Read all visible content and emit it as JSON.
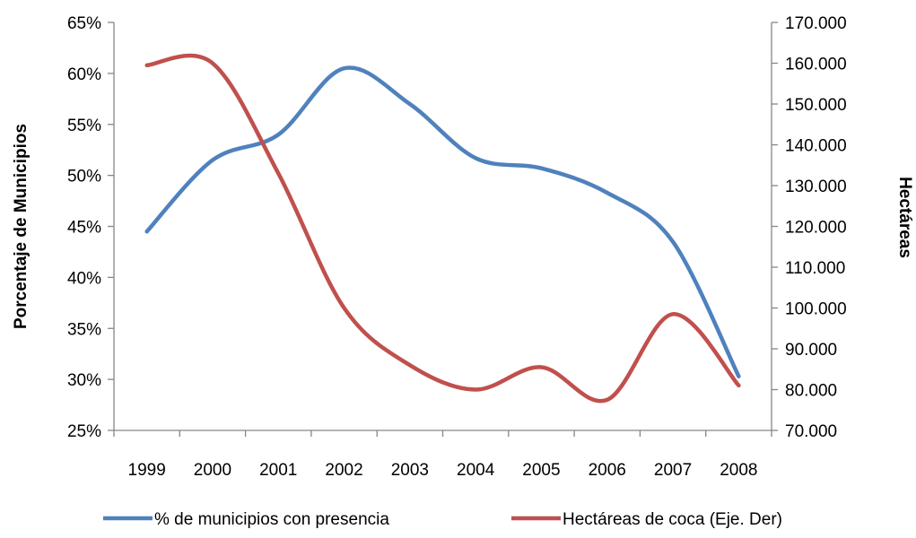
{
  "chart_data": {
    "type": "line",
    "categories": [
      "1999",
      "2000",
      "2001",
      "2002",
      "2003",
      "2004",
      "2005",
      "2006",
      "2007",
      "2008"
    ],
    "ylabel": "Porcentaje de Municipios",
    "y2label": "Hectáreas",
    "ylim": [
      25,
      65
    ],
    "y2lim": [
      70000,
      170000
    ],
    "yticks": [
      "25%",
      "30%",
      "35%",
      "40%",
      "45%",
      "50%",
      "55%",
      "60%",
      "65%"
    ],
    "y2ticks": [
      "70.000",
      "80.000",
      "90.000",
      "100.000",
      "110.000",
      "120.000",
      "130.000",
      "140.000",
      "150.000",
      "160.000",
      "170.000"
    ],
    "series": [
      {
        "name": "% de municipios con presencia",
        "axis": "left",
        "color": "#4f81bd",
        "values": [
          44.5,
          51.5,
          54.0,
          60.5,
          57.0,
          51.7,
          50.7,
          48.3,
          43.5,
          30.3
        ]
      },
      {
        "name": "Hectáreas de coca (Eje. Der)",
        "axis": "right",
        "color": "#c0504d",
        "values": [
          159500,
          160000,
          133000,
          100000,
          86000,
          80000,
          85500,
          77500,
          98500,
          81000
        ]
      }
    ],
    "grid": false,
    "legend": "bottom"
  }
}
